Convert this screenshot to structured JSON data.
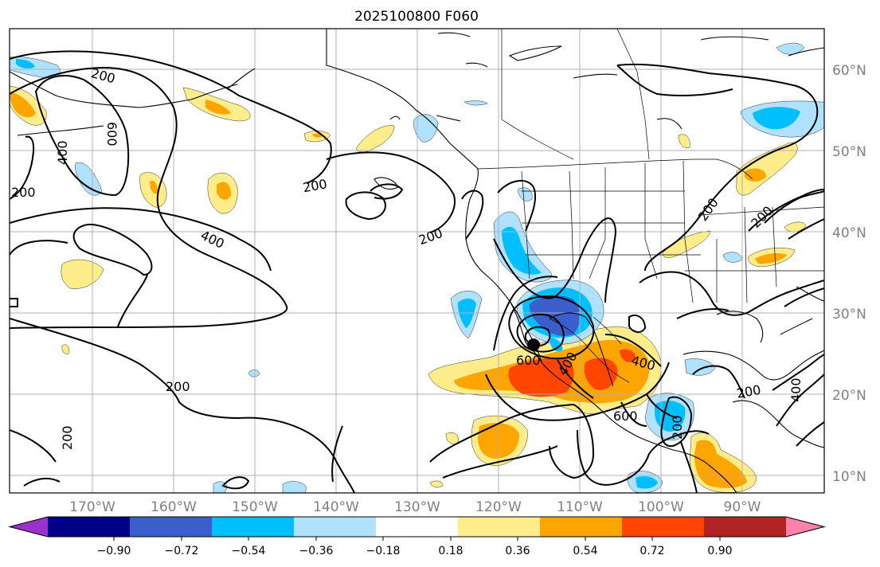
{
  "title": "2025100800 F060",
  "map": {
    "lat_labels": [
      "60°N",
      "50°N",
      "40°N",
      "30°N",
      "20°N",
      "10°N"
    ],
    "lon_labels": [
      "170°W",
      "160°W",
      "150°W",
      "140°W",
      "130°W",
      "120°W",
      "110°W",
      "100°W",
      "90°W"
    ],
    "contour_labels": [
      "200",
      "200",
      "200",
      "200",
      "200",
      "200",
      "200",
      "200",
      "200",
      "200",
      "400",
      "400",
      "400",
      "400",
      "400",
      "600",
      "600",
      "600"
    ]
  },
  "colorbar": {
    "colors": [
      "#9932cc",
      "#00008b",
      "#3a5fcd",
      "#00bfff",
      "#b0e2ff",
      "#ffffff",
      "#ffec8b",
      "#ffa500",
      "#ff4500",
      "#b22222",
      "#ff82ab"
    ],
    "tick_labels": [
      "−0.90",
      "−0.72",
      "−0.54",
      "−0.36",
      "−0.18",
      "0.18",
      "0.36",
      "0.54",
      "0.72",
      "0.90"
    ]
  },
  "colors": {
    "axis": "#000000",
    "grid": "#b0b0b0",
    "tick_label": "#808080"
  }
}
